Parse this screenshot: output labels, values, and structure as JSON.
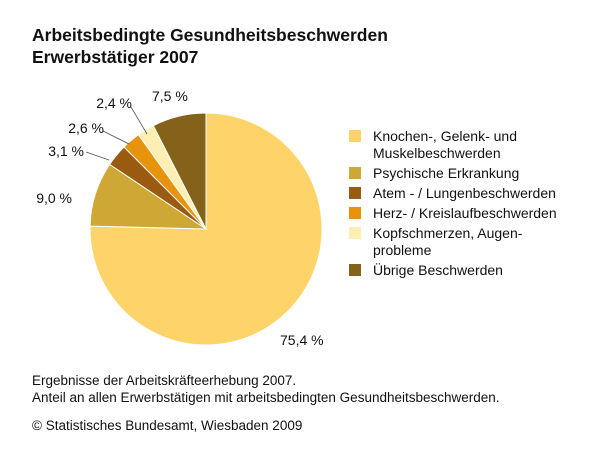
{
  "title": {
    "line1": "Arbeitsbedingte Gesundheitsbeschwerden",
    "line2": "Erwerbstätiger 2007"
  },
  "chart_data": {
    "type": "pie",
    "title": "Arbeitsbedingte Gesundheitsbeschwerden Erwerbstätiger 2007",
    "legend_position": "right",
    "slices": [
      {
        "name": "Knochen-, Gelenk- und\nMuskelbeschwerden",
        "value": 75.4,
        "label": "75,4 %",
        "color": "#fdd36a"
      },
      {
        "name": "Psychische Erkrankung",
        "value": 9.0,
        "label": "9,0 %",
        "color": "#cfa735"
      },
      {
        "name": "Atem - / Lungenbeschwerden",
        "value": 3.1,
        "label": "3,1 %",
        "color": "#9a5a10"
      },
      {
        "name": "Herz- / Kreislaufbeschwerden",
        "value": 2.6,
        "label": "2,6 %",
        "color": "#e8930c"
      },
      {
        "name": "Kopfschmerzen, Augen-\nprobleme",
        "value": 2.4,
        "label": "2,4 %",
        "color": "#fdefb3"
      },
      {
        "name": "Übrige Beschwerden",
        "value": 7.5,
        "label": "7,5 %",
        "color": "#84621a"
      }
    ]
  },
  "footnote": "Ergebnisse der Arbeitskräfteerhebung 2007.\nAnteil an allen Erwerbstätigen mit arbeitsbedingten Gesundheitsbeschwerden.",
  "source": "© Statistisches Bundesamt, Wiesbaden 2009"
}
